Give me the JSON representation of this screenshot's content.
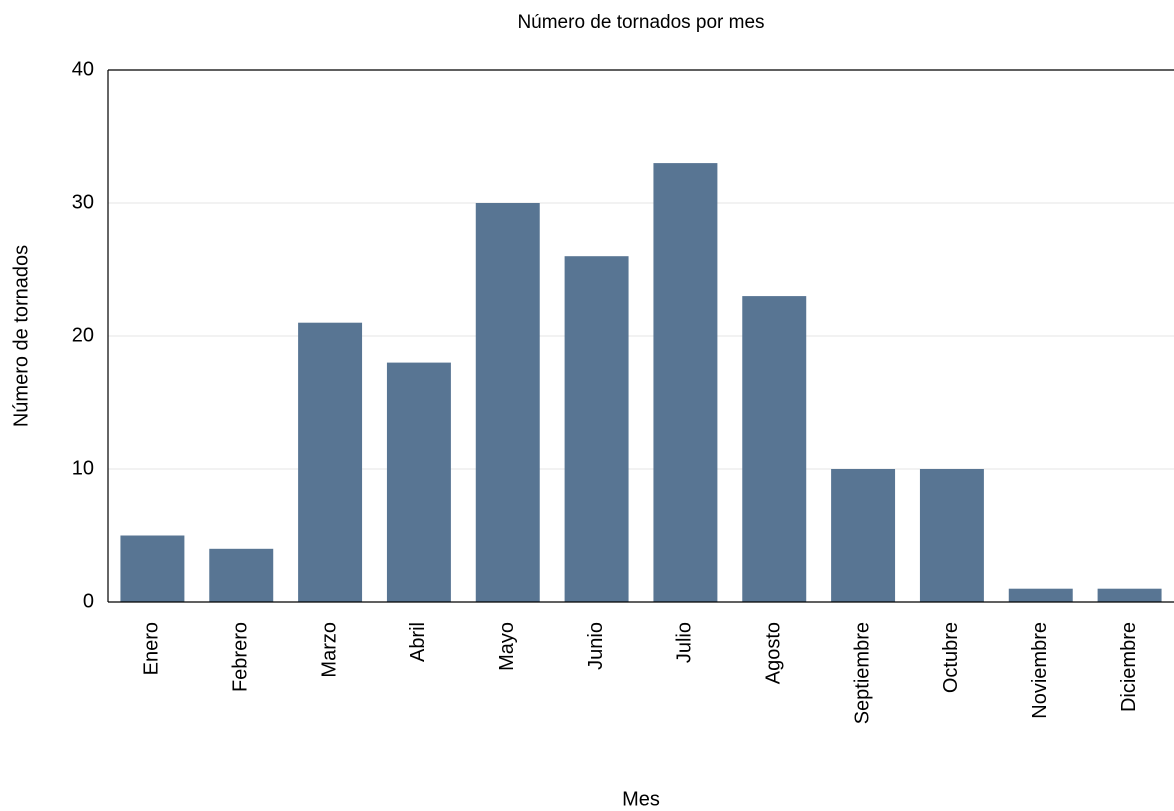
{
  "chart_data": {
    "type": "bar",
    "title": "Número de tornados por mes",
    "x_label": "Mes",
    "y_label": "Número de tornados",
    "categories": [
      "Enero",
      "Febrero",
      "Marzo",
      "Abril",
      "Mayo",
      "Junio",
      "Julio",
      "Agosto",
      "Septiembre",
      "Octubre",
      "Noviembre",
      "Diciembre"
    ],
    "values": [
      5,
      4,
      21,
      18,
      30,
      26,
      33,
      23,
      10,
      10,
      1,
      1
    ],
    "color": "#587593",
    "ylim": [
      0,
      40
    ],
    "yticks": [
      0,
      10,
      20,
      30,
      40
    ],
    "grid": true
  }
}
